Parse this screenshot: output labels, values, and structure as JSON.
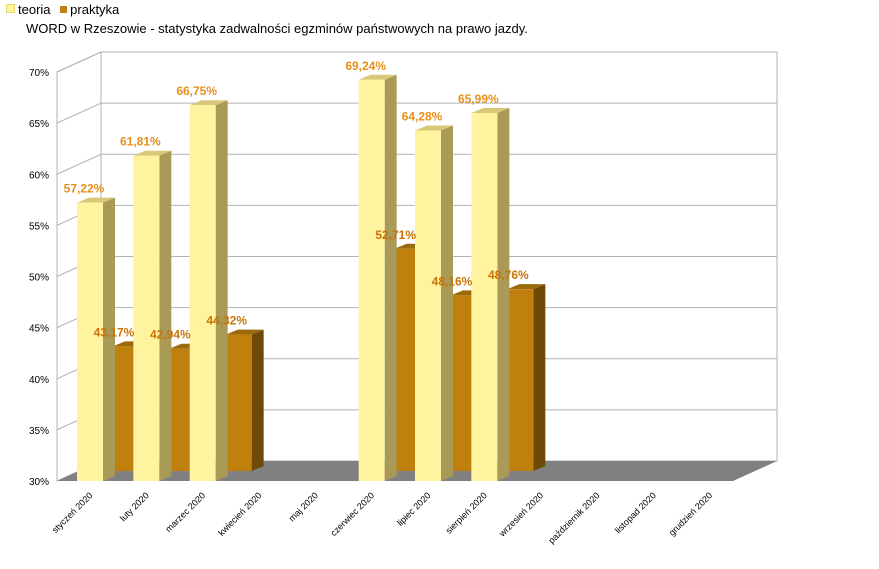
{
  "chart_data": {
    "type": "bar",
    "title": "WORD w Rzeszowie - statystyka zadwalności egzminów państwowych na prawo jazdy.",
    "categories": [
      "styczeń 2020",
      "luty 2020",
      "marzec 2020",
      "kwiecień 2020",
      "maj 2020",
      "czerwiec 2020",
      "lipiec 2020",
      "sierpień 2020",
      "wrzesień 2020",
      "październik 2020",
      "listopad 2020",
      "grudzień 2020"
    ],
    "series": [
      {
        "name": "teoria",
        "color": "#fff3a0",
        "values": [
          57.22,
          61.81,
          66.75,
          null,
          null,
          69.24,
          64.28,
          65.99,
          null,
          null,
          null,
          null
        ],
        "labels": [
          "57,22%",
          "61,81%",
          "66,75%",
          "",
          "",
          "69,24%",
          "64,28%",
          "65,99%",
          "",
          "",
          "",
          ""
        ]
      },
      {
        "name": "praktyka",
        "color": "#c0800e",
        "values": [
          43.17,
          42.94,
          44.32,
          null,
          null,
          52.71,
          48.16,
          48.76,
          null,
          null,
          null,
          null
        ],
        "labels": [
          "43,17%",
          "42,94%",
          "44,32%",
          "",
          "",
          "52,71%",
          "48,16%",
          "48,76%",
          "",
          "",
          "",
          ""
        ]
      }
    ],
    "ylim": [
      30,
      70
    ],
    "yticks": [
      "30%",
      "35%",
      "40%",
      "45%",
      "50%",
      "55%",
      "60%",
      "65%",
      "70%"
    ],
    "grid": true,
    "legend": "top-left"
  }
}
